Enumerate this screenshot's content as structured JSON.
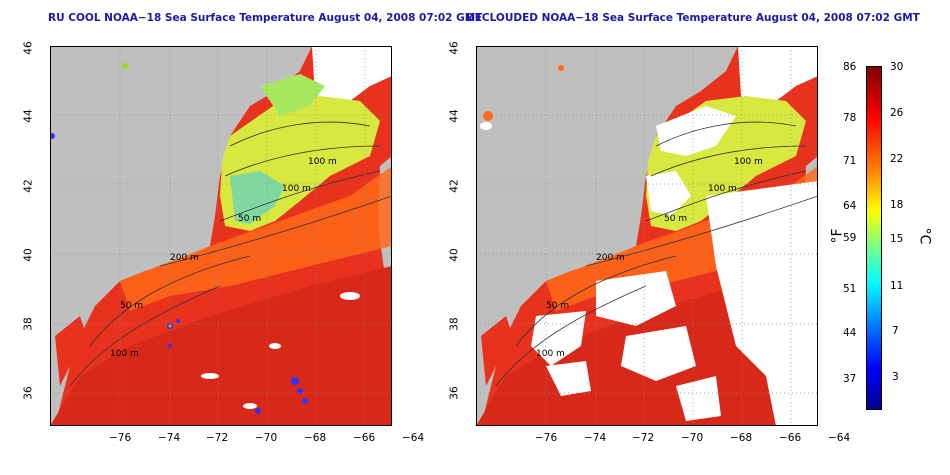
{
  "panels": [
    {
      "title": "RU COOL NOAA−18 Sea Surface Temperature August 04, 2008 07:02 GMT",
      "contours": [
        "100 m",
        "100 m",
        "50 m",
        "200 m",
        "50 m",
        "100 m"
      ]
    },
    {
      "title": "DECLOUDED NOAA−18 Sea Surface Temperature August 04, 2008 07:02 GMT",
      "contours": [
        "100 m",
        "100 m",
        "50 m",
        "200 m",
        "50 m",
        "100 m"
      ]
    }
  ],
  "axes": {
    "lat_ticks": [
      "46",
      "44",
      "42",
      "40",
      "38",
      "36"
    ],
    "lon_ticks": [
      "−76",
      "−74",
      "−72",
      "−70",
      "−68",
      "−66",
      "−64"
    ]
  },
  "colorbar": {
    "fahrenheit_unit": "°F",
    "celsius_unit": "°C",
    "fahrenheit_ticks": [
      "86",
      "78",
      "71",
      "64",
      "59",
      "51",
      "44",
      "37"
    ],
    "celsius_ticks": [
      "30",
      "26",
      "22",
      "18",
      "15",
      "11",
      "7",
      "3"
    ],
    "colors": [
      "#00008f",
      "#0000ff",
      "#0080ff",
      "#00ffff",
      "#80ff80",
      "#ffff00",
      "#ff8000",
      "#ff0000",
      "#800000"
    ]
  },
  "colors": {
    "land": "#bfbfbf",
    "cloud": "#ffffff",
    "warm": "#e8321e",
    "cool": "#d8e840",
    "title": "#1a1aa8"
  }
}
